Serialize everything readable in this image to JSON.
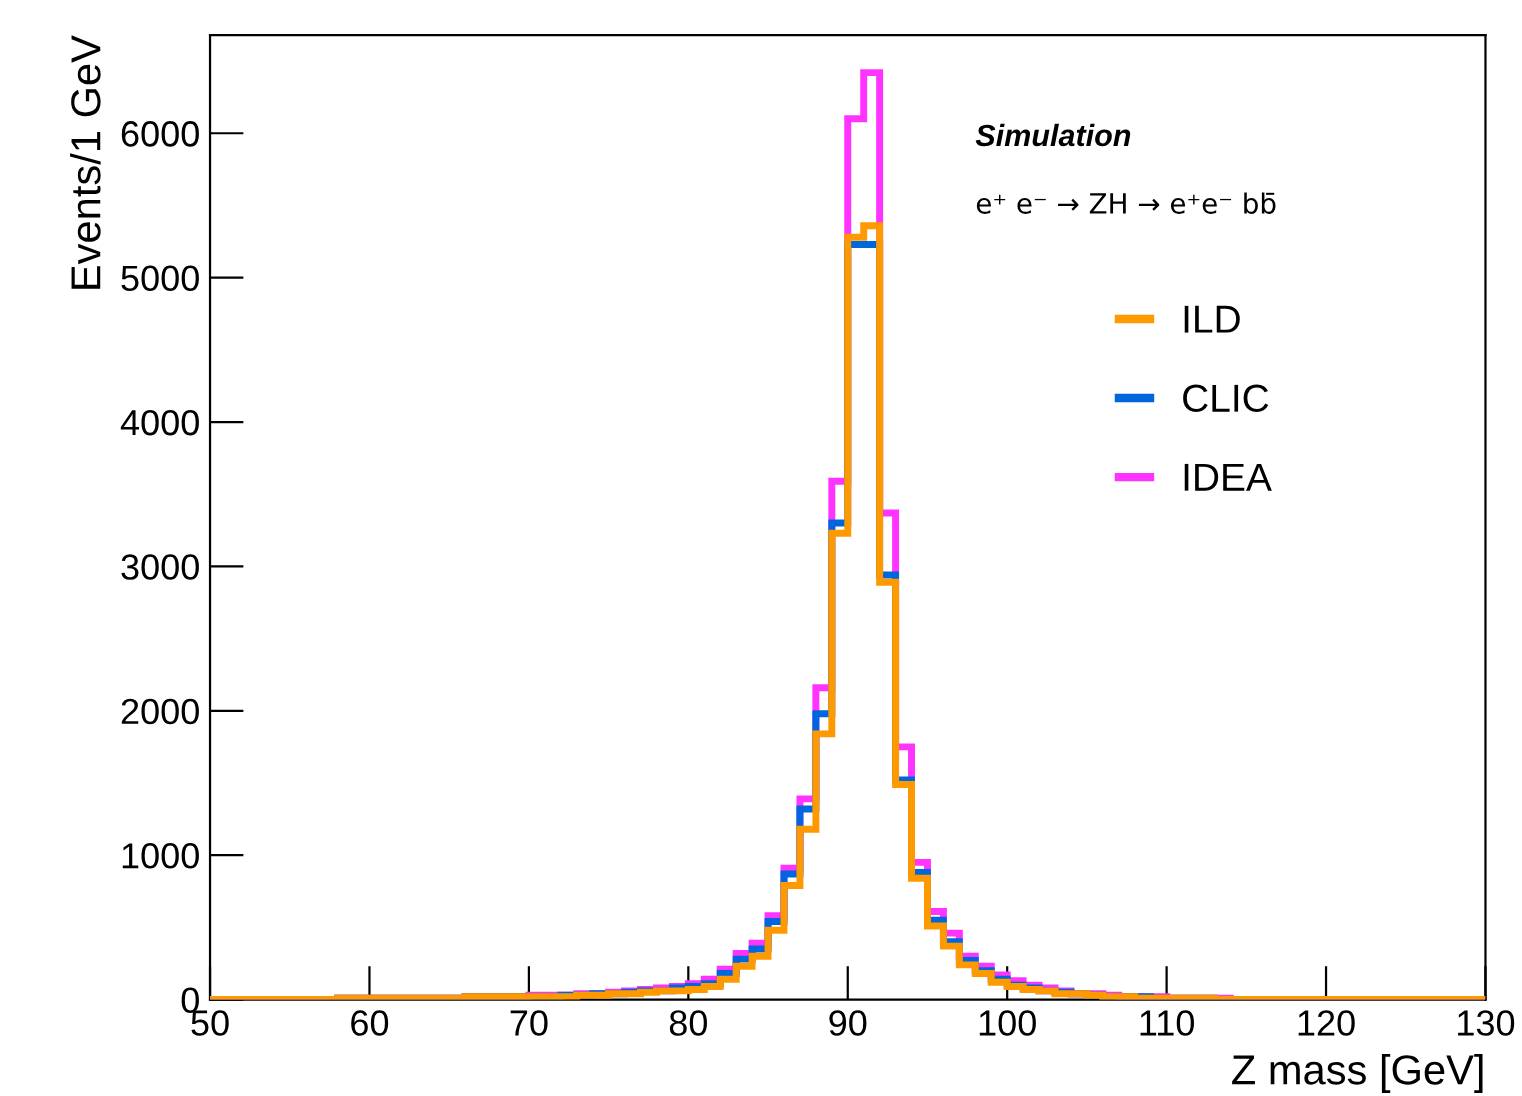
{
  "chart_data": {
    "type": "histogram",
    "xlabel": "Z mass [GeV]",
    "ylabel": "Events/1 GeV",
    "annotations": [
      "Simulation",
      "e⁺ e⁻ → ZH → e⁺e⁻ bb̄"
    ],
    "bins": [
      50,
      51,
      52,
      53,
      54,
      55,
      56,
      57,
      58,
      59,
      60,
      61,
      62,
      63,
      64,
      65,
      66,
      67,
      68,
      69,
      70,
      71,
      72,
      73,
      74,
      75,
      76,
      77,
      78,
      79,
      80,
      81,
      82,
      83,
      84,
      85,
      86,
      87,
      88,
      89,
      90,
      91,
      92,
      93,
      94,
      95,
      96,
      97,
      98,
      99,
      100,
      101,
      102,
      103,
      104,
      105,
      106,
      107,
      108,
      109,
      110,
      111,
      112,
      113,
      114,
      115,
      116,
      117,
      118,
      119,
      120,
      121,
      122,
      123,
      124,
      125,
      126,
      127,
      128,
      129,
      130
    ],
    "series": [
      {
        "name": "IDEA",
        "color": "#ff33ff",
        "values": [
          0,
          0,
          0,
          0,
          0,
          0,
          0,
          0,
          10,
          10,
          10,
          10,
          10,
          10,
          10,
          10,
          20,
          20,
          20,
          20,
          30,
          30,
          30,
          40,
          40,
          50,
          60,
          70,
          80,
          90,
          110,
          140,
          210,
          320,
          390,
          580,
          910,
          1390,
          2160,
          3590,
          6100,
          6420,
          3370,
          1750,
          950,
          610,
          460,
          300,
          230,
          170,
          130,
          100,
          80,
          60,
          40,
          40,
          30,
          20,
          20,
          20,
          10,
          10,
          10,
          10,
          0,
          0,
          0,
          0,
          0,
          0,
          0,
          0,
          0,
          0,
          0,
          0,
          0,
          0,
          0,
          0
        ]
      },
      {
        "name": "CLIC",
        "color": "#0066dd",
        "values": [
          0,
          0,
          0,
          0,
          0,
          0,
          0,
          0,
          10,
          10,
          10,
          10,
          10,
          10,
          10,
          10,
          20,
          20,
          20,
          20,
          20,
          20,
          30,
          30,
          40,
          40,
          50,
          60,
          60,
          80,
          90,
          110,
          180,
          280,
          350,
          540,
          870,
          1320,
          1980,
          3300,
          5230,
          5230,
          2940,
          1520,
          880,
          550,
          400,
          270,
          200,
          140,
          100,
          80,
          60,
          50,
          40,
          30,
          20,
          20,
          20,
          10,
          10,
          10,
          10,
          0,
          0,
          0,
          0,
          0,
          0,
          0,
          0,
          0,
          0,
          0,
          0,
          0,
          0,
          0,
          0,
          0
        ]
      },
      {
        "name": "ILD",
        "color": "#ff9900",
        "values": [
          0,
          0,
          0,
          0,
          0,
          0,
          0,
          0,
          10,
          10,
          10,
          10,
          10,
          10,
          10,
          10,
          20,
          20,
          20,
          20,
          20,
          20,
          20,
          30,
          30,
          40,
          40,
          50,
          60,
          60,
          70,
          90,
          140,
          230,
          300,
          480,
          790,
          1180,
          1840,
          3230,
          5280,
          5360,
          2890,
          1490,
          840,
          510,
          370,
          240,
          180,
          120,
          90,
          70,
          60,
          40,
          40,
          30,
          20,
          20,
          10,
          10,
          10,
          10,
          10,
          0,
          0,
          0,
          0,
          0,
          0,
          0,
          0,
          0,
          0,
          0,
          0,
          0,
          0,
          0,
          0,
          0
        ]
      }
    ],
    "xlim": [
      50,
      130
    ],
    "xticks": [
      50,
      60,
      70,
      80,
      90,
      100,
      110,
      120,
      130
    ],
    "ylim": [
      0,
      6680
    ],
    "yticks": [
      0,
      1000,
      2000,
      3000,
      4000,
      5000,
      6000
    ],
    "grid": false,
    "legend": "right"
  }
}
